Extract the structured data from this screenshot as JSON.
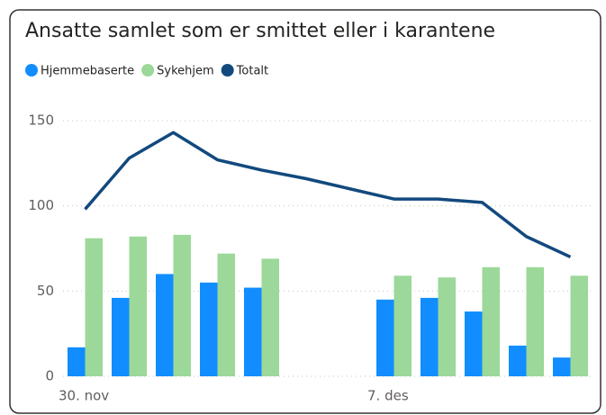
{
  "chart_data": {
    "type": "bar-line",
    "title": "Ansatte samlet som er smittet eller i karantene",
    "categories": [
      "30. nov",
      null,
      null,
      null,
      null,
      null,
      null,
      "7. des",
      null,
      null,
      null,
      null
    ],
    "series": [
      {
        "name": "Hjemmebaserte",
        "type": "bar",
        "color": "#118dff",
        "values": [
          17,
          46,
          60,
          55,
          52,
          null,
          null,
          45,
          46,
          38,
          18,
          11
        ]
      },
      {
        "name": "Sykehjem",
        "type": "bar",
        "color": "#9bd899",
        "values": [
          81,
          82,
          83,
          72,
          69,
          null,
          null,
          59,
          58,
          64,
          64,
          59
        ]
      },
      {
        "name": "Totalt",
        "type": "line",
        "color": "#12497e",
        "values": [
          98,
          128,
          143,
          127,
          121,
          116,
          110,
          104,
          104,
          102,
          82,
          70
        ]
      }
    ],
    "ylim": [
      0,
      150
    ],
    "yticks": [
      0,
      50,
      100,
      150
    ],
    "grid": true,
    "legend": "top-left"
  }
}
